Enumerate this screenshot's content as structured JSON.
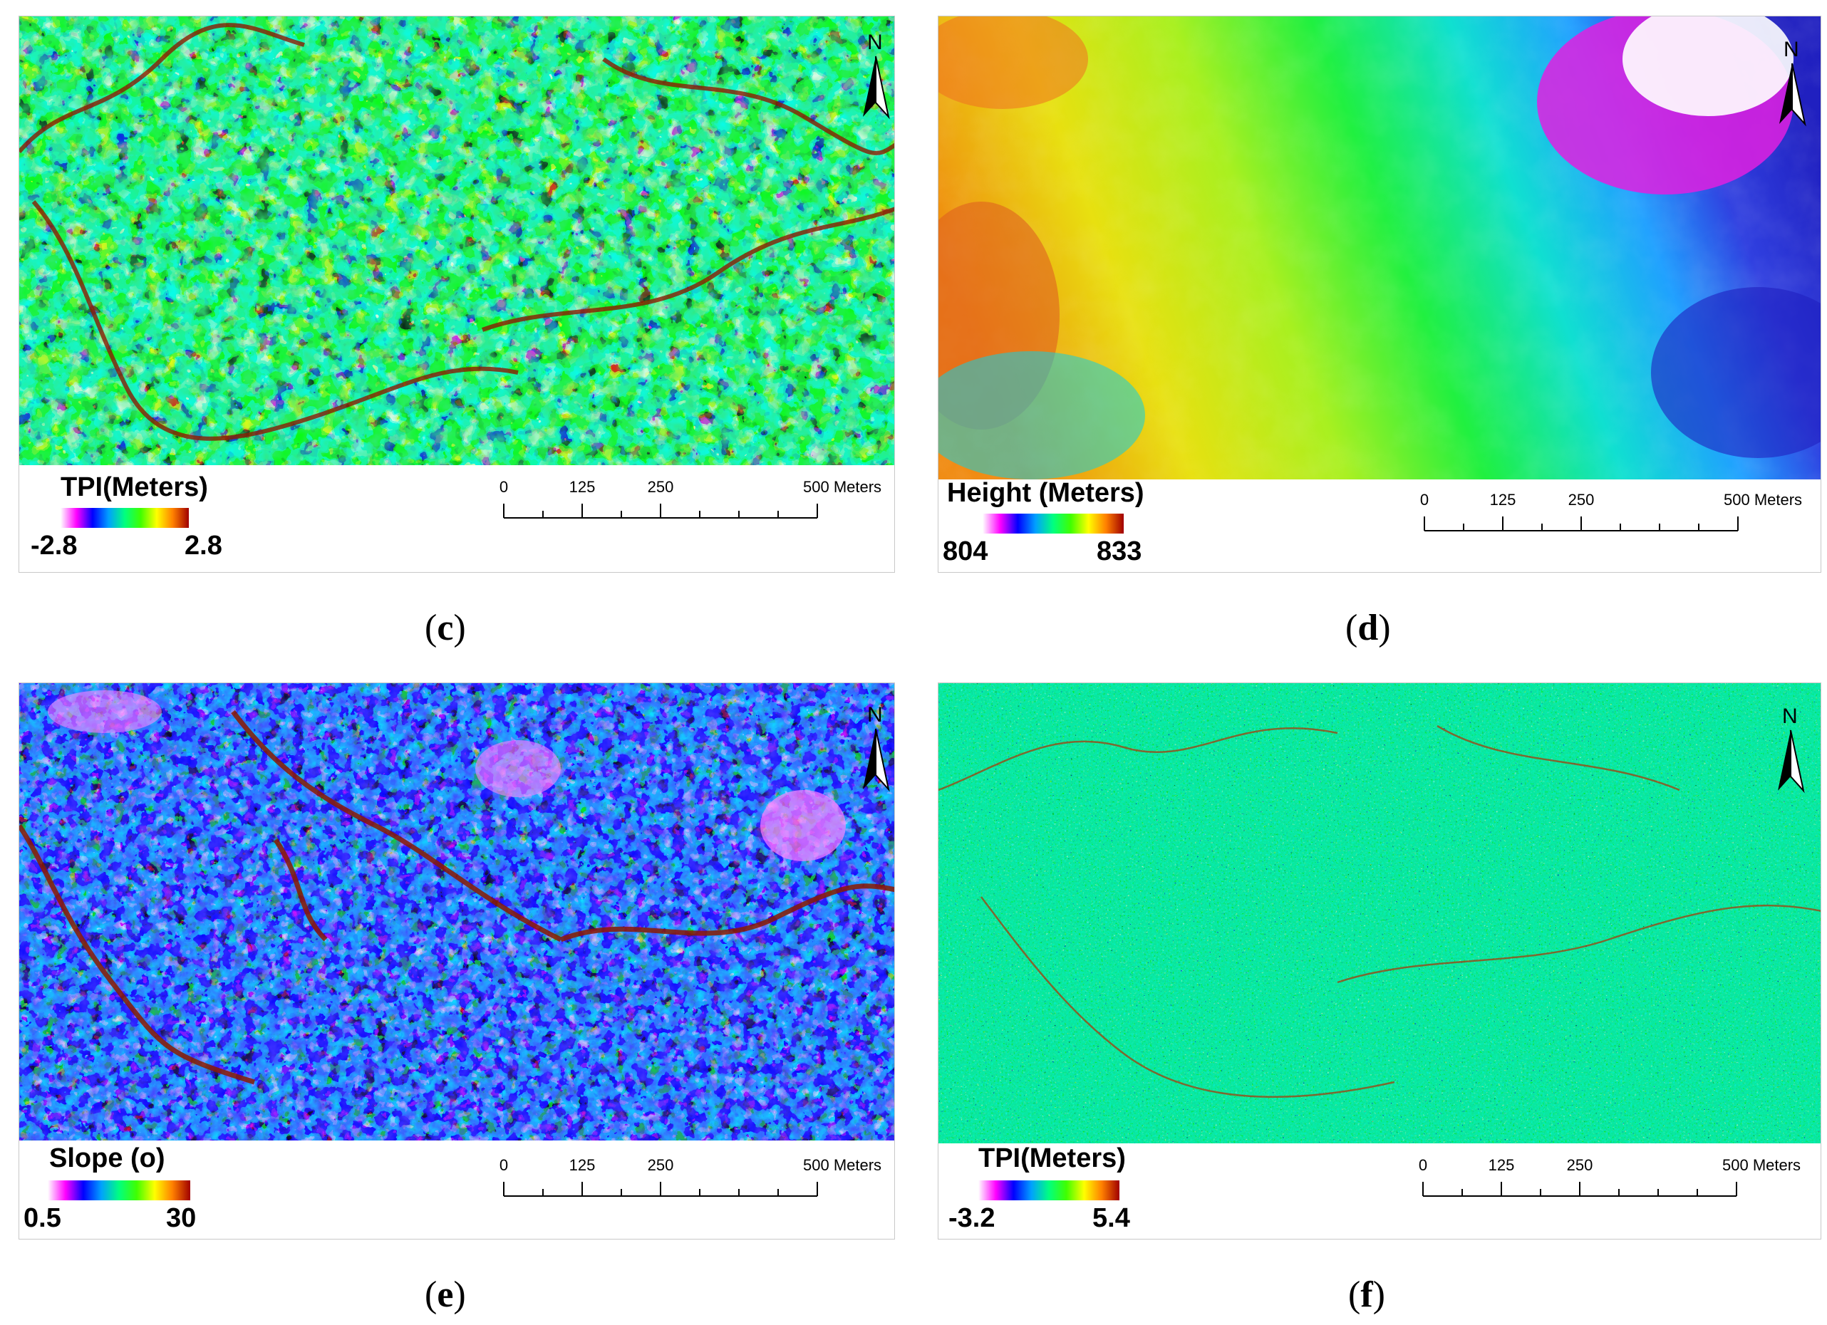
{
  "panels": [
    {
      "id": "c",
      "caption_letter": "c",
      "legend": {
        "title": "TPI(Meters)",
        "min": "-2.8",
        "max": "2.8"
      },
      "scale": {
        "ticks": [
          "0",
          "125",
          "250"
        ],
        "units": "500 Meters"
      },
      "north": "N",
      "texture": "tpi-coarse"
    },
    {
      "id": "d",
      "caption_letter": "d",
      "legend": {
        "title": "Height (Meters)",
        "min": "804",
        "max": "833"
      },
      "scale": {
        "ticks": [
          "0",
          "125",
          "250"
        ],
        "units": "500 Meters"
      },
      "north": "N",
      "texture": "height"
    },
    {
      "id": "e",
      "caption_letter": "e",
      "legend": {
        "title": "Slope (o)",
        "min": "0.5",
        "max": "30"
      },
      "scale": {
        "ticks": [
          "0",
          "125",
          "250"
        ],
        "units": "500 Meters"
      },
      "north": "N",
      "texture": "slope"
    },
    {
      "id": "f",
      "caption_letter": "f",
      "legend": {
        "title": "TPI(Meters)",
        "min": "-3.2",
        "max": "5.4"
      },
      "scale": {
        "ticks": [
          "0",
          "125",
          "250"
        ],
        "units": "500 Meters"
      },
      "north": "N",
      "texture": "tpi-fine"
    }
  ],
  "colors": {
    "ramp": [
      "#ffffff",
      "#ff00ff",
      "#0000ff",
      "#00a0ff",
      "#00ff80",
      "#40ff00",
      "#ffff00",
      "#ff8000",
      "#a00000"
    ],
    "caption_text": "#000000",
    "panel_border": "#c8c8c8"
  }
}
